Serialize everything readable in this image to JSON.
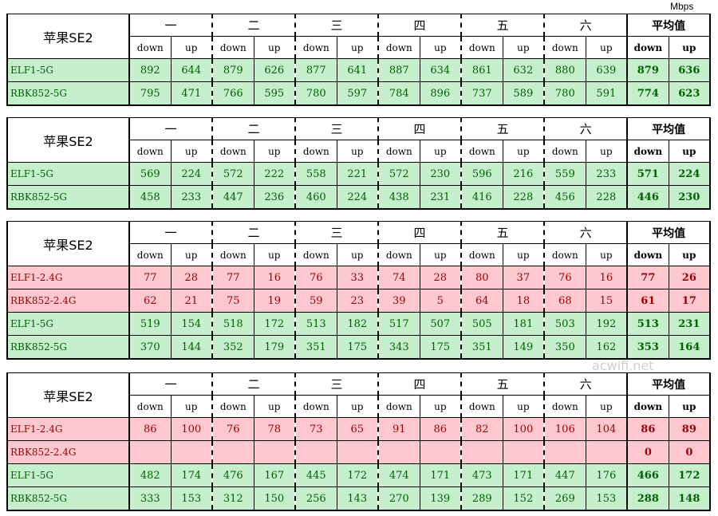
{
  "unit": "Mbps",
  "watermark": "acwifi.net",
  "corner": "苹果SE2",
  "days": [
    "一",
    "二",
    "三",
    "四",
    "五",
    "六"
  ],
  "avg_header": "平均值",
  "sub_down": "down",
  "sub_up": "up",
  "tables": [
    {
      "rows": [
        {
          "label": "ELF1-5G",
          "band": "green",
          "values": [
            "892",
            "644",
            "879",
            "626",
            "877",
            "641",
            "887",
            "634",
            "861",
            "632",
            "880",
            "639"
          ],
          "avg": [
            "879",
            "636"
          ]
        },
        {
          "label": "RBK852-5G",
          "band": "green",
          "values": [
            "795",
            "471",
            "766",
            "595",
            "780",
            "597",
            "784",
            "896",
            "737",
            "589",
            "780",
            "591"
          ],
          "avg": [
            "774",
            "623"
          ]
        }
      ]
    },
    {
      "rows": [
        {
          "label": "ELF1-5G",
          "band": "green",
          "values": [
            "569",
            "224",
            "572",
            "222",
            "558",
            "221",
            "572",
            "230",
            "596",
            "216",
            "559",
            "233"
          ],
          "avg": [
            "571",
            "224"
          ]
        },
        {
          "label": "RBK852-5G",
          "band": "green",
          "values": [
            "458",
            "233",
            "447",
            "236",
            "460",
            "224",
            "438",
            "231",
            "416",
            "228",
            "456",
            "228"
          ],
          "avg": [
            "446",
            "230"
          ]
        }
      ]
    },
    {
      "rows": [
        {
          "label": "ELF1-2.4G",
          "band": "red",
          "values": [
            "77",
            "28",
            "77",
            "16",
            "76",
            "33",
            "74",
            "28",
            "80",
            "37",
            "76",
            "16"
          ],
          "avg": [
            "77",
            "26"
          ]
        },
        {
          "label": "RBK852-2.4G",
          "band": "red",
          "values": [
            "62",
            "21",
            "75",
            "19",
            "59",
            "23",
            "39",
            "5",
            "64",
            "18",
            "68",
            "15"
          ],
          "avg": [
            "61",
            "17"
          ]
        },
        {
          "label": "ELF1-5G",
          "band": "green",
          "values": [
            "519",
            "154",
            "518",
            "172",
            "513",
            "182",
            "517",
            "507",
            "505",
            "181",
            "503",
            "192"
          ],
          "avg": [
            "513",
            "231"
          ]
        },
        {
          "label": "RBK852-5G",
          "band": "green",
          "values": [
            "370",
            "144",
            "352",
            "179",
            "351",
            "175",
            "343",
            "175",
            "351",
            "149",
            "350",
            "162"
          ],
          "avg": [
            "353",
            "164"
          ]
        }
      ]
    },
    {
      "rows": [
        {
          "label": "ELF1-2.4G",
          "band": "red",
          "values": [
            "86",
            "100",
            "76",
            "78",
            "73",
            "65",
            "91",
            "86",
            "82",
            "100",
            "106",
            "104"
          ],
          "avg": [
            "86",
            "89"
          ]
        },
        {
          "label": "RBK852-2.4G",
          "band": "red",
          "values": [
            "",
            "",
            "",
            "",
            "",
            "",
            "",
            "",
            "",
            "",
            "",
            ""
          ],
          "avg": [
            "0",
            "0"
          ]
        },
        {
          "label": "ELF1-5G",
          "band": "green",
          "values": [
            "482",
            "174",
            "476",
            "167",
            "445",
            "172",
            "474",
            "171",
            "473",
            "171",
            "447",
            "176"
          ],
          "avg": [
            "466",
            "172"
          ]
        },
        {
          "label": "RBK852-5G",
          "band": "green",
          "values": [
            "333",
            "153",
            "312",
            "150",
            "256",
            "143",
            "270",
            "139",
            "289",
            "152",
            "269",
            "153"
          ],
          "avg": [
            "288",
            "148"
          ]
        }
      ]
    }
  ],
  "colors": {
    "green_bg": "#c6efce",
    "green_text": "#006100",
    "red_bg": "#ffc7ce",
    "red_text": "#9c0006"
  }
}
